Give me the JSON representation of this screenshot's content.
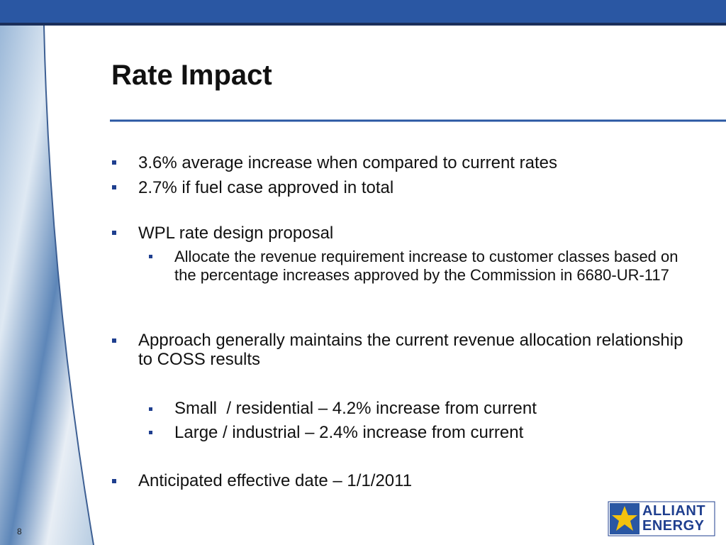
{
  "slide": {
    "title": "Rate Impact",
    "bullets": [
      {
        "text": "3.6% average increase when compared to current rates"
      },
      {
        "text": "2.7% if fuel case approved in total"
      },
      {
        "text": "WPL rate design proposal",
        "sub": [
          "Allocate the revenue requirement increase to customer classes based on the percentage increases approved by the Commission in 6680-UR-117"
        ]
      },
      {
        "text": "Approach generally maintains the current revenue allocation relationship to COSS results",
        "sub": [
          "Small  / residential – 4.2% increase from current",
          "Large / industrial – 2.4% increase from current"
        ]
      },
      {
        "text": "Anticipated effective date – 1/1/2011"
      }
    ],
    "page_number": "8",
    "logo": [
      "ALLIANT",
      "ENERGY"
    ]
  }
}
